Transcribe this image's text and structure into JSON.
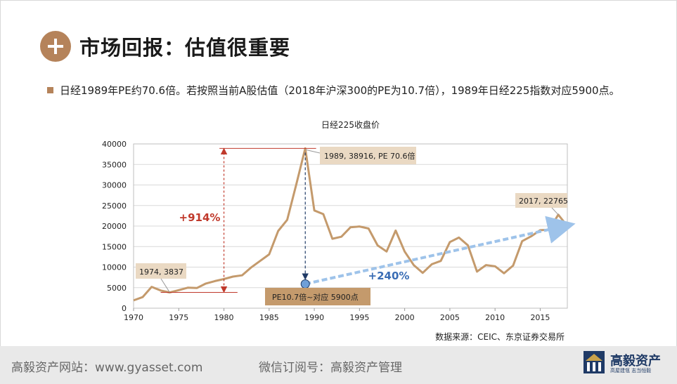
{
  "page": {
    "title": "市场回报：估值很重要",
    "bullet": "日经1989年PE约70.6倍。若按照当前A股估值（2018年沪深300的PE为10.7倍），1989年日经225指数对应5900点。",
    "source": "数据来源：CEIC、东京证券交易所"
  },
  "footer": {
    "website": "高毅资产网站：www.gyasset.com",
    "wechat": "微信订阅号：高毅资产管理",
    "logo_name": "高毅资产",
    "logo_tagline": "高屋建瓴 志当恒毅"
  },
  "colors": {
    "accent": "#b5835a",
    "line": "#c49a6c",
    "red": "#c0392b",
    "blue": "#3a6db5",
    "label_bg": "#ead9c3"
  },
  "chart_data": {
    "type": "line",
    "title": "日经225收盘价",
    "xlim": [
      1970,
      2018
    ],
    "ylim": [
      0,
      40000
    ],
    "x_ticks": [
      1970,
      1975,
      1980,
      1985,
      1990,
      1995,
      2000,
      2005,
      2010,
      2015
    ],
    "y_ticks": [
      0,
      5000,
      10000,
      15000,
      20000,
      25000,
      30000,
      35000,
      40000
    ],
    "grid": true,
    "series": [
      {
        "x": [
          1970,
          1971,
          1972,
          1973,
          1974,
          1975,
          1976,
          1977,
          1978,
          1979,
          1980,
          1981,
          1982,
          1983,
          1984,
          1985,
          1986,
          1987,
          1988,
          1989,
          1990,
          1991,
          1992,
          1993,
          1994,
          1995,
          1996,
          1997,
          1998,
          1999,
          2000,
          2001,
          2002,
          2003,
          2004,
          2005,
          2006,
          2007,
          2008,
          2009,
          2010,
          2011,
          2012,
          2013,
          2014,
          2015,
          2016,
          2017,
          2018
        ],
        "y": [
          1900,
          2700,
          5200,
          4300,
          3837,
          4400,
          5000,
          4900,
          6000,
          6600,
          7100,
          7700,
          8000,
          9900,
          11500,
          13100,
          18800,
          21500,
          30100,
          38916,
          23800,
          22900,
          16900,
          17400,
          19700,
          19900,
          19400,
          15300,
          13800,
          18900,
          13800,
          10500,
          8600,
          10700,
          11500,
          16100,
          17200,
          15300,
          8900,
          10500,
          10200,
          8500,
          10400,
          16300,
          17500,
          19000,
          19100,
          22765,
          20000
        ]
      }
    ],
    "annotations": {
      "peak_label": "1989, 38916, PE 70.6倍",
      "low_label": "1974, 3837",
      "recent_label": "2017, 22765",
      "rise_label": "+914%",
      "gain_label": "+240%",
      "box_label": "PE10.7倍~对应 5900点"
    },
    "implied_level": {
      "x": 1989,
      "y": 5900
    },
    "trend_line": {
      "x": [
        1989,
        2018
      ],
      "y": [
        5900,
        20000
      ]
    }
  }
}
